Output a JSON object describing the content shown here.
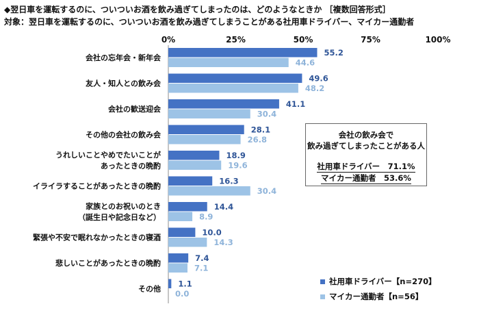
{
  "title": "◆翌日車を運転するのに、ついついお酒を飲み過ぎてしまったのは、どのようなときか ［複数回答形式］",
  "subtitle": "対象：翌日車を運転するのに、ついついお酒を飲み過ぎてしまうことがある社用車ドライバー、マイカー通勤者",
  "note": {
    "heading_line1": "会社の飲み会で",
    "heading_line2": "飲み過ぎてしまったことがある人",
    "row1": "社用車ドライバー　71.1%",
    "row2": "マイカー通勤者　53.6%"
  },
  "legend": [
    {
      "label": "社用車ドライバー【n=270】",
      "color": "#4472C4"
    },
    {
      "label": "マイカー通勤者【n=56】",
      "color": "#9DC3E6"
    }
  ],
  "chart_data": {
    "type": "bar",
    "orientation": "horizontal",
    "x_ticks": [
      "0%",
      "25%",
      "50%",
      "75%",
      "100%"
    ],
    "xlim": [
      0,
      100
    ],
    "categories": [
      [
        "会社の忘年会・新年会"
      ],
      [
        "友人・知人との飲み会"
      ],
      [
        "会社の歓送迎会"
      ],
      [
        "その他の会社の飲み会"
      ],
      [
        "うれしいことやめでたいことが",
        "あったときの晩酌"
      ],
      [
        "イライラすることがあったときの晩酌"
      ],
      [
        "家族とのお祝いのとき",
        "（誕生日や記念日など）"
      ],
      [
        "緊張や不安で眠れなかったときの寝酒"
      ],
      [
        "悲しいことがあったときの晩酌"
      ],
      [
        "その他"
      ]
    ],
    "series": [
      {
        "name": "社用車ドライバー【n=270】",
        "color": "#4472C4",
        "label_color": "#2F5597",
        "values": [
          55.2,
          49.6,
          41.1,
          28.1,
          18.9,
          16.3,
          14.4,
          10.0,
          7.4,
          1.1
        ]
      },
      {
        "name": "マイカー通勤者【n=56】",
        "color": "#9DC3E6",
        "label_color": "#8FB4DA",
        "values": [
          44.6,
          48.2,
          30.4,
          26.8,
          19.6,
          30.4,
          8.9,
          14.3,
          7.1,
          0.0
        ]
      }
    ]
  }
}
